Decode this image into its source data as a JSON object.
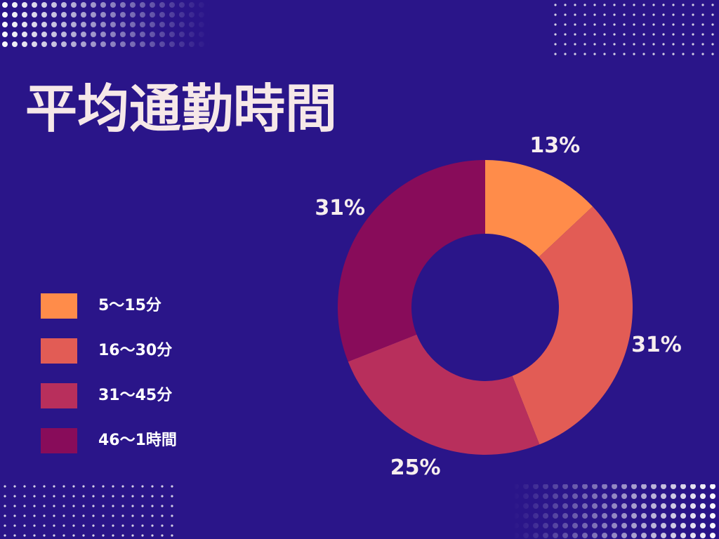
{
  "chart_data": {
    "type": "donut",
    "title": "平均通勤時間",
    "categories": [
      "5〜15分",
      "16〜30分",
      "31〜45分",
      "46〜1時間"
    ],
    "values": [
      13,
      31,
      25,
      31
    ],
    "value_labels": [
      "13%",
      "31%",
      "25%",
      "31%"
    ],
    "colors": [
      "#ff8c4a",
      "#e25c55",
      "#b82f5c",
      "#880c5a"
    ],
    "legend": "left"
  }
}
